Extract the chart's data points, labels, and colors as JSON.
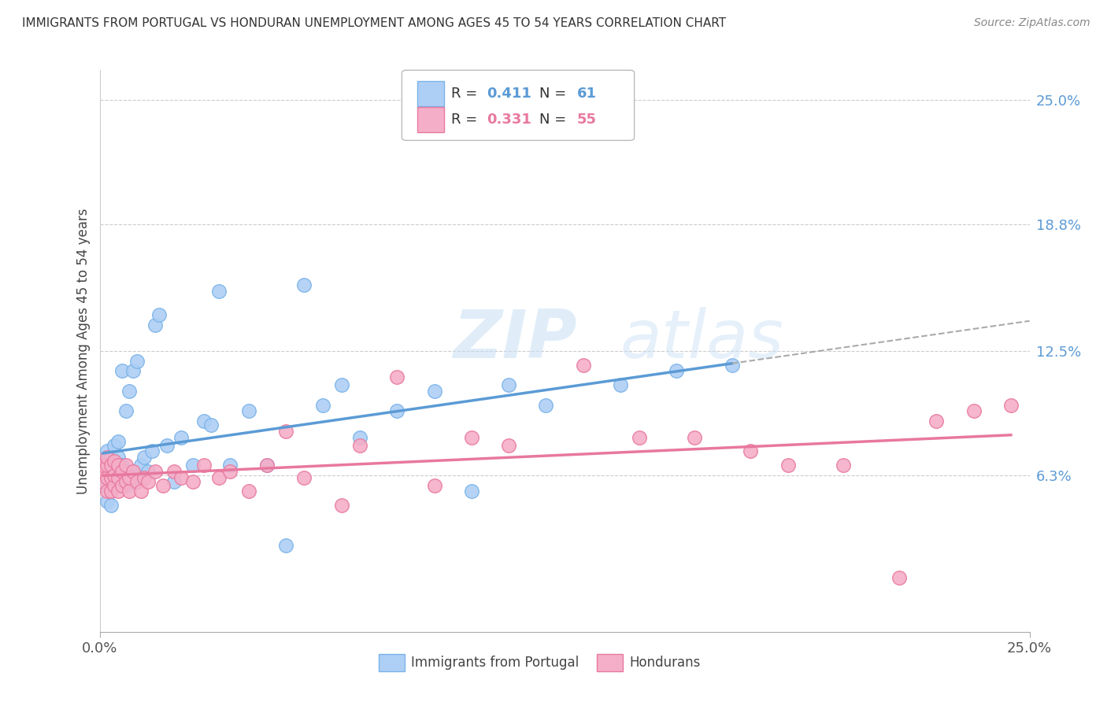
{
  "title": "IMMIGRANTS FROM PORTUGAL VS HONDURAN UNEMPLOYMENT AMONG AGES 45 TO 54 YEARS CORRELATION CHART",
  "source": "Source: ZipAtlas.com",
  "ylabel": "Unemployment Among Ages 45 to 54 years",
  "xlim": [
    0.0,
    0.25
  ],
  "ylim": [
    -0.015,
    0.265
  ],
  "ytick_labels_right": [
    "25.0%",
    "18.8%",
    "12.5%",
    "6.3%"
  ],
  "ytick_values_right": [
    0.25,
    0.188,
    0.125,
    0.063
  ],
  "color_blue": "#aecff5",
  "color_blue_edge": "#7ab3e8",
  "color_pink": "#f5aec8",
  "color_pink_edge": "#e87a9e",
  "color_blue_line": "#5b9bd5",
  "color_pink_line": "#e8789e",
  "color_right_axis": "#5b9bd5",
  "watermark_zip": "ZIP",
  "watermark_atlas": "atlas",
  "portugal_x": [
    0.001,
    0.001,
    0.001,
    0.002,
    0.002,
    0.002,
    0.002,
    0.003,
    0.003,
    0.003,
    0.003,
    0.003,
    0.004,
    0.004,
    0.004,
    0.004,
    0.005,
    0.005,
    0.005,
    0.005,
    0.006,
    0.006,
    0.006,
    0.007,
    0.007,
    0.007,
    0.008,
    0.008,
    0.009,
    0.009,
    0.01,
    0.01,
    0.011,
    0.012,
    0.013,
    0.014,
    0.015,
    0.016,
    0.018,
    0.02,
    0.022,
    0.025,
    0.028,
    0.03,
    0.032,
    0.035,
    0.04,
    0.045,
    0.05,
    0.055,
    0.06,
    0.065,
    0.07,
    0.08,
    0.09,
    0.1,
    0.11,
    0.12,
    0.14,
    0.155,
    0.17
  ],
  "portugal_y": [
    0.058,
    0.063,
    0.068,
    0.05,
    0.06,
    0.07,
    0.075,
    0.048,
    0.055,
    0.062,
    0.068,
    0.072,
    0.058,
    0.065,
    0.07,
    0.078,
    0.06,
    0.065,
    0.072,
    0.08,
    0.063,
    0.068,
    0.115,
    0.058,
    0.065,
    0.095,
    0.063,
    0.105,
    0.06,
    0.115,
    0.063,
    0.12,
    0.068,
    0.072,
    0.065,
    0.075,
    0.138,
    0.143,
    0.078,
    0.06,
    0.082,
    0.068,
    0.09,
    0.088,
    0.155,
    0.068,
    0.095,
    0.068,
    0.028,
    0.158,
    0.098,
    0.108,
    0.082,
    0.095,
    0.105,
    0.055,
    0.108,
    0.098,
    0.108,
    0.115,
    0.118
  ],
  "honduran_x": [
    0.001,
    0.001,
    0.001,
    0.002,
    0.002,
    0.002,
    0.002,
    0.003,
    0.003,
    0.003,
    0.004,
    0.004,
    0.004,
    0.005,
    0.005,
    0.005,
    0.006,
    0.006,
    0.007,
    0.007,
    0.008,
    0.008,
    0.009,
    0.01,
    0.011,
    0.012,
    0.013,
    0.015,
    0.017,
    0.02,
    0.022,
    0.025,
    0.028,
    0.032,
    0.035,
    0.04,
    0.045,
    0.05,
    0.055,
    0.065,
    0.07,
    0.08,
    0.09,
    0.1,
    0.11,
    0.13,
    0.145,
    0.16,
    0.175,
    0.185,
    0.2,
    0.215,
    0.225,
    0.235,
    0.245
  ],
  "honduran_y": [
    0.06,
    0.065,
    0.068,
    0.055,
    0.062,
    0.068,
    0.072,
    0.055,
    0.062,
    0.068,
    0.058,
    0.063,
    0.07,
    0.055,
    0.062,
    0.068,
    0.058,
    0.065,
    0.06,
    0.068,
    0.055,
    0.062,
    0.065,
    0.06,
    0.055,
    0.062,
    0.06,
    0.065,
    0.058,
    0.065,
    0.062,
    0.06,
    0.068,
    0.062,
    0.065,
    0.055,
    0.068,
    0.085,
    0.062,
    0.048,
    0.078,
    0.112,
    0.058,
    0.082,
    0.078,
    0.118,
    0.082,
    0.082,
    0.075,
    0.068,
    0.068,
    0.012,
    0.09,
    0.095,
    0.098
  ]
}
